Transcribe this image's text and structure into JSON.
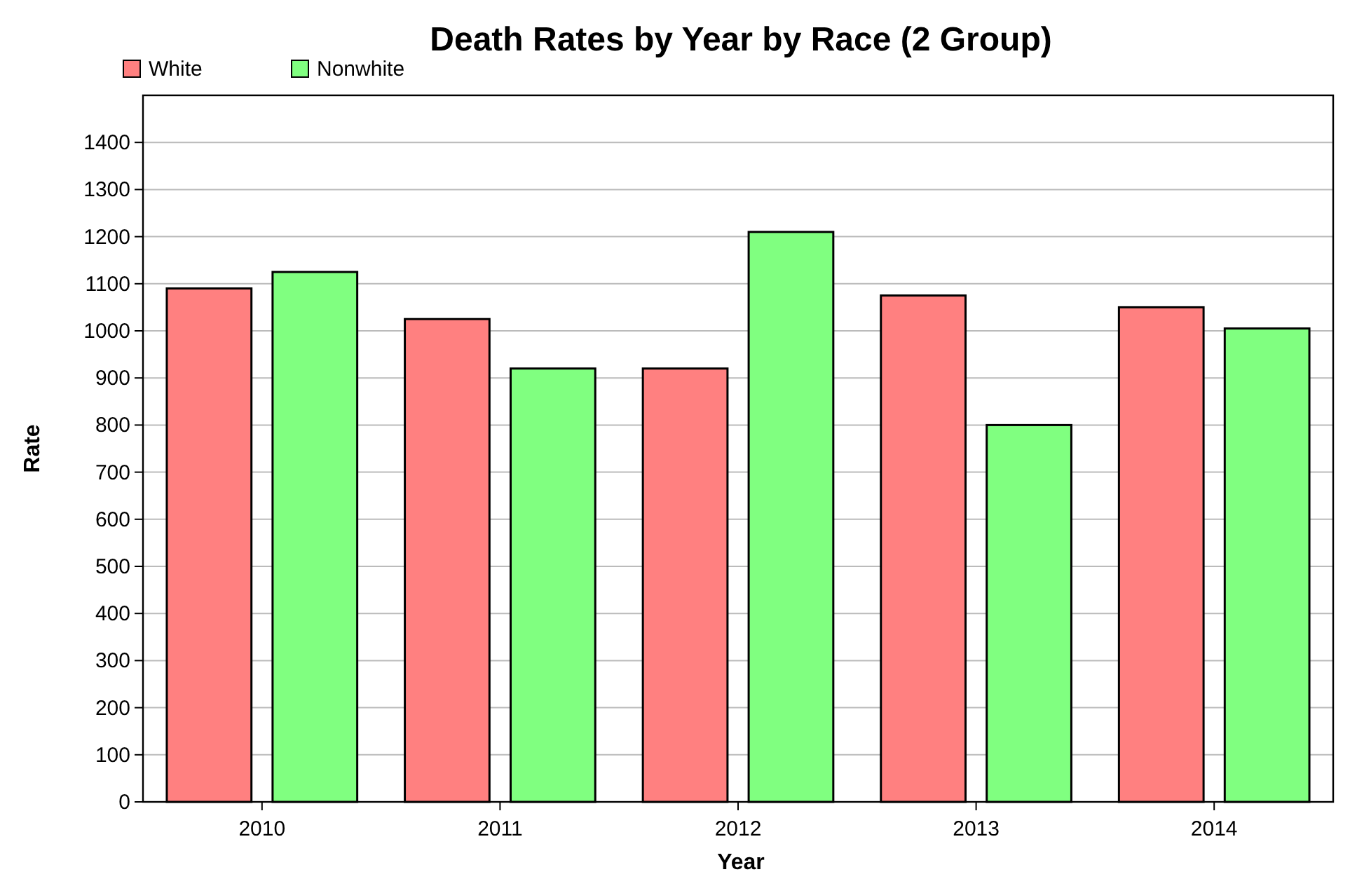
{
  "chart_data": {
    "type": "bar",
    "title": "Death Rates by Year by Race (2 Group)",
    "xlabel": "Year",
    "ylabel": "Rate",
    "categories": [
      "2010",
      "2011",
      "2012",
      "2013",
      "2014"
    ],
    "series": [
      {
        "name": "White",
        "color": "#ff8080",
        "values": [
          1090,
          1025,
          920,
          1075,
          1050
        ]
      },
      {
        "name": "Nonwhite",
        "color": "#80ff80",
        "values": [
          1125,
          920,
          1210,
          800,
          1005
        ]
      }
    ],
    "ylim": [
      0,
      1500
    ],
    "yticks": [
      0,
      100,
      200,
      300,
      400,
      500,
      600,
      700,
      800,
      900,
      1000,
      1100,
      1200,
      1300,
      1400
    ],
    "grid": "y",
    "legend": "top left"
  }
}
